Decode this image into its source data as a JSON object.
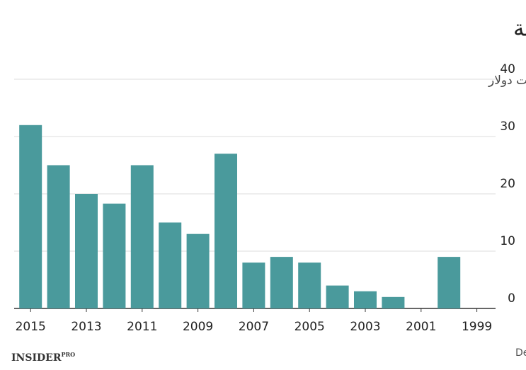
{
  "chart_data": {
    "type": "bar",
    "title": "الشركات الصينية تشتري شركات أوروبية",
    "y_label": "مليارات دولار",
    "source": "المصدر: Dealogic",
    "logo": "INSIDER",
    "logo_sup": "PRO",
    "categories": [
      "2015",
      null,
      "2013",
      null,
      "2011",
      null,
      "2009",
      null,
      "2007",
      null,
      "2005",
      null,
      "2003",
      null,
      "2001",
      null,
      "1999"
    ],
    "values": [
      32,
      25,
      20,
      18.3,
      25,
      15,
      13,
      27,
      8,
      9,
      8,
      4,
      3,
      2,
      0,
      9,
      0
    ],
    "color": "#4a9a9c",
    "ylim": [
      0,
      40
    ],
    "yticks": [
      0,
      10,
      20,
      30,
      40
    ],
    "grid": true
  }
}
